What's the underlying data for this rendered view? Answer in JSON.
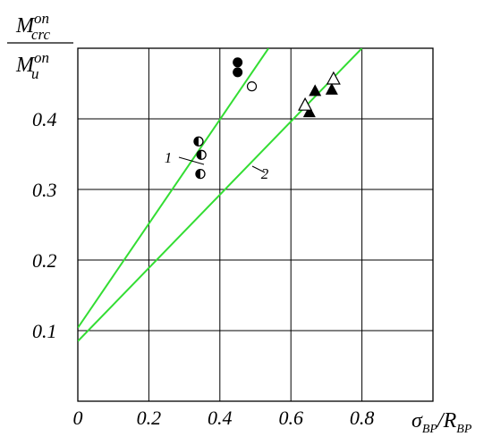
{
  "chart_data": {
    "type": "scatter",
    "xlim": [
      0,
      1
    ],
    "ylim": [
      0,
      0.5
    ],
    "xticks": [
      0,
      0.2,
      0.4,
      0.6,
      0.8
    ],
    "yticks": [
      0.1,
      0.2,
      0.3,
      0.4
    ],
    "grid": true,
    "y_label": {
      "top": "M",
      "top_sub": "crc",
      "top_sup": "on",
      "bottom": "M",
      "bottom_sub": "u",
      "bottom_sup": "on"
    },
    "x_label": {
      "symbol": "σ",
      "symbol_sub": "BP",
      "divisor": "/R",
      "divisor_sub": "BP"
    },
    "series": [
      {
        "marker": "half-circle",
        "color": "#000000",
        "x": [
          0.34,
          0.348,
          0.345
        ],
        "values": [
          0.368,
          0.349,
          0.322
        ]
      },
      {
        "marker": "filled-circle",
        "color": "#000000",
        "x": [
          0.45,
          0.45
        ],
        "values": [
          0.48,
          0.466
        ]
      },
      {
        "marker": "open-circle",
        "color": "#000000",
        "x": [
          0.49
        ],
        "values": [
          0.446
        ]
      },
      {
        "marker": "filled-triangle",
        "color": "#000000",
        "x": [
          0.652,
          0.668,
          0.715
        ],
        "values": [
          0.41,
          0.44,
          0.442
        ]
      },
      {
        "marker": "open-triangle",
        "color": "#000000",
        "x": [
          0.64,
          0.72
        ],
        "values": [
          0.42,
          0.457
        ]
      }
    ],
    "lines": [
      {
        "label": "1",
        "color": "#33dd33",
        "x": [
          0,
          0.537
        ],
        "values": [
          0.104,
          0.5
        ]
      },
      {
        "label": "2",
        "color": "#33dd33",
        "x": [
          0,
          0.8
        ],
        "values": [
          0.085,
          0.5
        ]
      }
    ]
  }
}
